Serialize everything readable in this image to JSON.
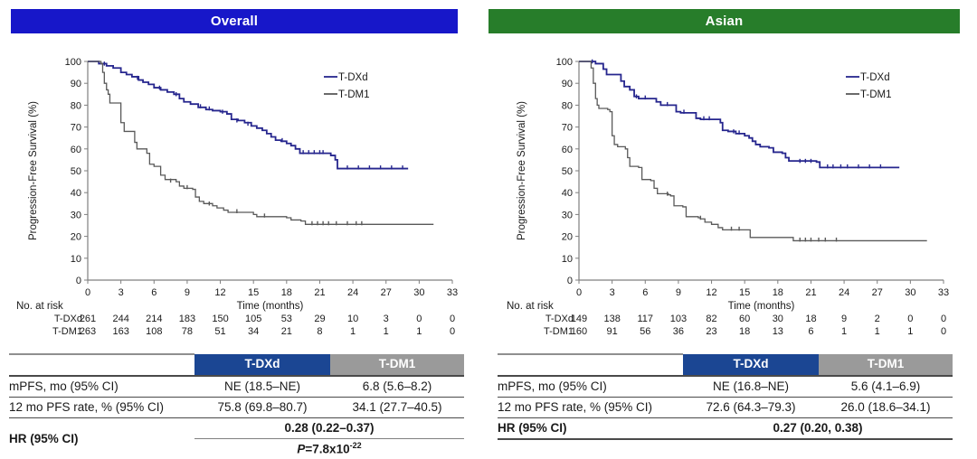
{
  "chart_data": [
    {
      "type": "line",
      "subtype": "kaplan-meier-step",
      "title": "Overall",
      "title_bg": "#1717c9",
      "xlabel": "Time (months)",
      "ylabel": "Progression-Free Survival (%)",
      "xlim": [
        0,
        33
      ],
      "ylim": [
        0,
        100
      ],
      "xticks": [
        0,
        3,
        6,
        9,
        12,
        15,
        18,
        21,
        24,
        27,
        30,
        33
      ],
      "yticks": [
        0,
        10,
        20,
        30,
        40,
        50,
        60,
        70,
        80,
        90,
        100
      ],
      "legend_position": "top-right",
      "grid": false,
      "series": [
        {
          "name": "T-DXd",
          "color": "#26268e",
          "steps": [
            [
              0,
              100
            ],
            [
              1,
              99
            ],
            [
              1.7,
              98
            ],
            [
              2.3,
              97
            ],
            [
              3,
              95
            ],
            [
              3.5,
              94
            ],
            [
              4,
              93
            ],
            [
              4.6,
              91.5
            ],
            [
              5,
              90.5
            ],
            [
              5.5,
              89.5
            ],
            [
              6,
              88
            ],
            [
              6.6,
              87
            ],
            [
              7.2,
              86
            ],
            [
              7.8,
              85
            ],
            [
              8.3,
              83
            ],
            [
              8.7,
              81.5
            ],
            [
              9.3,
              80.5
            ],
            [
              10,
              79
            ],
            [
              10.7,
              78
            ],
            [
              11.3,
              77.5
            ],
            [
              12,
              77
            ],
            [
              12.6,
              76
            ],
            [
              13,
              73.5
            ],
            [
              13.6,
              73
            ],
            [
              14.2,
              72
            ],
            [
              14.8,
              70.5
            ],
            [
              15.3,
              69.5
            ],
            [
              15.8,
              68.5
            ],
            [
              16.2,
              67
            ],
            [
              16.6,
              65.5
            ],
            [
              17,
              64
            ],
            [
              17.5,
              63.5
            ],
            [
              18,
              62.5
            ],
            [
              18.4,
              61.5
            ],
            [
              18.8,
              60
            ],
            [
              19.2,
              58
            ],
            [
              21.5,
              58
            ],
            [
              22,
              57
            ],
            [
              22.4,
              55
            ],
            [
              22.6,
              51
            ],
            [
              29,
              51
            ]
          ],
          "censors": [
            [
              1.5,
              98.5
            ],
            [
              4.5,
              92
            ],
            [
              6.5,
              87.5
            ],
            [
              8,
              84.5
            ],
            [
              10.2,
              79
            ],
            [
              11,
              78
            ],
            [
              12.2,
              76.5
            ],
            [
              13.5,
              72.5
            ],
            [
              14.5,
              71
            ],
            [
              17.6,
              63.5
            ],
            [
              19.5,
              58
            ],
            [
              20,
              58
            ],
            [
              20.5,
              58
            ],
            [
              21,
              58
            ],
            [
              21.3,
              58
            ],
            [
              23.5,
              51
            ],
            [
              24.5,
              51
            ],
            [
              25.5,
              51
            ],
            [
              26.5,
              51
            ],
            [
              27.5,
              51
            ],
            [
              28.5,
              51
            ]
          ]
        },
        {
          "name": "T-DM1",
          "color": "#595959",
          "steps": [
            [
              0,
              100
            ],
            [
              1.2,
              99
            ],
            [
              1.35,
              95
            ],
            [
              1.5,
              90
            ],
            [
              1.7,
              87
            ],
            [
              1.85,
              85
            ],
            [
              2,
              81
            ],
            [
              2.8,
              81
            ],
            [
              3,
              72
            ],
            [
              3.3,
              68
            ],
            [
              4.1,
              68
            ],
            [
              4.25,
              63
            ],
            [
              4.45,
              60
            ],
            [
              5.1,
              60
            ],
            [
              5.35,
              58
            ],
            [
              5.6,
              53
            ],
            [
              6,
              52
            ],
            [
              6.6,
              48
            ],
            [
              7,
              46
            ],
            [
              8,
              45
            ],
            [
              8.3,
              43
            ],
            [
              8.7,
              42
            ],
            [
              9.5,
              41.5
            ],
            [
              9.75,
              38
            ],
            [
              10.1,
              36
            ],
            [
              10.5,
              35
            ],
            [
              11.3,
              34
            ],
            [
              11.7,
              33
            ],
            [
              12.3,
              32
            ],
            [
              12.7,
              31
            ],
            [
              14.7,
              31
            ],
            [
              15,
              30
            ],
            [
              15.3,
              29
            ],
            [
              17.5,
              29
            ],
            [
              18,
              28.5
            ],
            [
              18.4,
              27.5
            ],
            [
              19.3,
              27
            ],
            [
              19.7,
              25.5
            ],
            [
              31.3,
              25.5
            ]
          ],
          "censors": [
            [
              7.5,
              45
            ],
            [
              9,
              42
            ],
            [
              11,
              34.5
            ],
            [
              13.5,
              31
            ],
            [
              16,
              29
            ],
            [
              20.3,
              25.5
            ],
            [
              20.8,
              25.5
            ],
            [
              21.3,
              25.5
            ],
            [
              21.8,
              25.5
            ],
            [
              22.5,
              25.5
            ],
            [
              23.5,
              25.5
            ],
            [
              24.3,
              25.5
            ],
            [
              24.8,
              25.5
            ]
          ]
        }
      ],
      "at_risk_label": "No. at risk",
      "at_risk": [
        {
          "name": "T-DXd",
          "values": [
            261,
            244,
            214,
            183,
            150,
            105,
            53,
            29,
            10,
            3,
            0,
            0
          ]
        },
        {
          "name": "T-DM1",
          "values": [
            263,
            163,
            108,
            78,
            51,
            34,
            21,
            8,
            1,
            1,
            1,
            0
          ]
        }
      ],
      "summary_table": {
        "col_headers": [
          "T-DXd",
          "T-DM1"
        ],
        "header_colors": [
          "#1b4693",
          "#9a9a9a"
        ],
        "rows": [
          {
            "label": "mPFS, mo (95% CI)",
            "values": [
              "NE (18.5–NE)",
              "6.8 (5.6–8.2)"
            ]
          },
          {
            "label": "12 mo PFS rate, % (95% CI)",
            "values": [
              "75.8 (69.8–80.7)",
              "34.1 (27.7–40.5)"
            ]
          }
        ],
        "hr_label": "HR (95% CI)",
        "hr_value": "0.28 (0.22–0.37)",
        "p_label": "P",
        "p_eq": "=7.8x10",
        "p_exp": "-22"
      }
    },
    {
      "type": "line",
      "subtype": "kaplan-meier-step",
      "title": "Asian",
      "title_bg": "#277d2a",
      "xlabel": "Time (months)",
      "ylabel": "Progression-Free Survival (%)",
      "xlim": [
        0,
        33
      ],
      "ylim": [
        0,
        100
      ],
      "xticks": [
        0,
        3,
        6,
        9,
        12,
        15,
        18,
        21,
        24,
        27,
        30,
        33
      ],
      "yticks": [
        0,
        10,
        20,
        30,
        40,
        50,
        60,
        70,
        80,
        90,
        100
      ],
      "legend_position": "top-right",
      "grid": false,
      "series": [
        {
          "name": "T-DXd",
          "color": "#26268e",
          "steps": [
            [
              0,
              100
            ],
            [
              1.5,
              99
            ],
            [
              2.2,
              96.5
            ],
            [
              2.5,
              94
            ],
            [
              3.5,
              94
            ],
            [
              3.8,
              91
            ],
            [
              4.1,
              88.5
            ],
            [
              4.6,
              87
            ],
            [
              5,
              84
            ],
            [
              5.4,
              83
            ],
            [
              7,
              81.5
            ],
            [
              7.4,
              80
            ],
            [
              8.5,
              80
            ],
            [
              8.8,
              77
            ],
            [
              9.2,
              76.5
            ],
            [
              10.3,
              76.5
            ],
            [
              10.6,
              74
            ],
            [
              11,
              73.5
            ],
            [
              12.5,
              73.5
            ],
            [
              12.8,
              72
            ],
            [
              13,
              68.5
            ],
            [
              13.5,
              68
            ],
            [
              14.2,
              67
            ],
            [
              15,
              66
            ],
            [
              15.4,
              65
            ],
            [
              15.7,
              63.5
            ],
            [
              16,
              62
            ],
            [
              16.4,
              61
            ],
            [
              17.2,
              60.5
            ],
            [
              17.6,
              58.5
            ],
            [
              18.4,
              58
            ],
            [
              18.7,
              56
            ],
            [
              19,
              54.5
            ],
            [
              21.5,
              54
            ],
            [
              21.8,
              51.5
            ],
            [
              29,
              51.5
            ]
          ],
          "censors": [
            [
              1.2,
              99.5
            ],
            [
              5.2,
              83.5
            ],
            [
              6,
              83
            ],
            [
              8,
              80
            ],
            [
              9.5,
              76.5
            ],
            [
              11.3,
              73.5
            ],
            [
              11.8,
              73.5
            ],
            [
              14,
              67.5
            ],
            [
              14.5,
              67
            ],
            [
              20,
              54
            ],
            [
              20.5,
              54
            ],
            [
              21,
              54
            ],
            [
              22.5,
              51.5
            ],
            [
              23,
              51.5
            ],
            [
              23.7,
              51.5
            ],
            [
              24.3,
              51.5
            ],
            [
              25.3,
              51.5
            ],
            [
              26.3,
              51.5
            ],
            [
              27.3,
              51.5
            ]
          ]
        },
        {
          "name": "T-DM1",
          "color": "#595959",
          "steps": [
            [
              0,
              100
            ],
            [
              1.1,
              97
            ],
            [
              1.3,
              90
            ],
            [
              1.5,
              83
            ],
            [
              1.65,
              80
            ],
            [
              1.8,
              78.5
            ],
            [
              2.6,
              78
            ],
            [
              2.8,
              77
            ],
            [
              3,
              66
            ],
            [
              3.2,
              62
            ],
            [
              3.5,
              61
            ],
            [
              4.2,
              60
            ],
            [
              4.4,
              56
            ],
            [
              4.6,
              52
            ],
            [
              5.4,
              51.5
            ],
            [
              5.7,
              46
            ],
            [
              6.5,
              45.5
            ],
            [
              6.8,
              42
            ],
            [
              7.1,
              39.5
            ],
            [
              8.1,
              39
            ],
            [
              8.3,
              38.5
            ],
            [
              8.6,
              34
            ],
            [
              9.4,
              33.5
            ],
            [
              9.7,
              29
            ],
            [
              10.8,
              28.5
            ],
            [
              11,
              28
            ],
            [
              11.4,
              26.5
            ],
            [
              12,
              25.5
            ],
            [
              12.6,
              24
            ],
            [
              13,
              23
            ],
            [
              15.2,
              23
            ],
            [
              15.5,
              19.5
            ],
            [
              19,
              19.5
            ],
            [
              19.4,
              18
            ],
            [
              31.5,
              18
            ]
          ],
          "censors": [
            [
              8,
              39
            ],
            [
              11,
              28
            ],
            [
              13.8,
              23
            ],
            [
              14.5,
              23
            ],
            [
              20,
              18
            ],
            [
              20.5,
              18
            ],
            [
              21,
              18
            ],
            [
              21.7,
              18
            ],
            [
              22.3,
              18
            ],
            [
              23.3,
              18
            ]
          ]
        }
      ],
      "at_risk_label": "No. at risk",
      "at_risk": [
        {
          "name": "T-DXd",
          "values": [
            149,
            138,
            117,
            103,
            82,
            60,
            30,
            18,
            9,
            2,
            0,
            0
          ]
        },
        {
          "name": "T-DM1",
          "values": [
            160,
            91,
            56,
            36,
            23,
            18,
            13,
            6,
            1,
            1,
            1,
            0
          ]
        }
      ],
      "summary_table": {
        "col_headers": [
          "T-DXd",
          "T-DM1"
        ],
        "header_colors": [
          "#1b4693",
          "#9a9a9a"
        ],
        "rows": [
          {
            "label": "mPFS, mo (95% CI)",
            "values": [
              "NE (16.8–NE)",
              "5.6 (4.1–6.9)"
            ]
          },
          {
            "label": "12 mo PFS rate, % (95% CI)",
            "values": [
              "72.6 (64.3–79.3)",
              "26.0 (18.6–34.1)"
            ]
          }
        ],
        "hr_label": "HR (95% CI)",
        "hr_value": "0.27 (0.20, 0.38)"
      }
    }
  ]
}
